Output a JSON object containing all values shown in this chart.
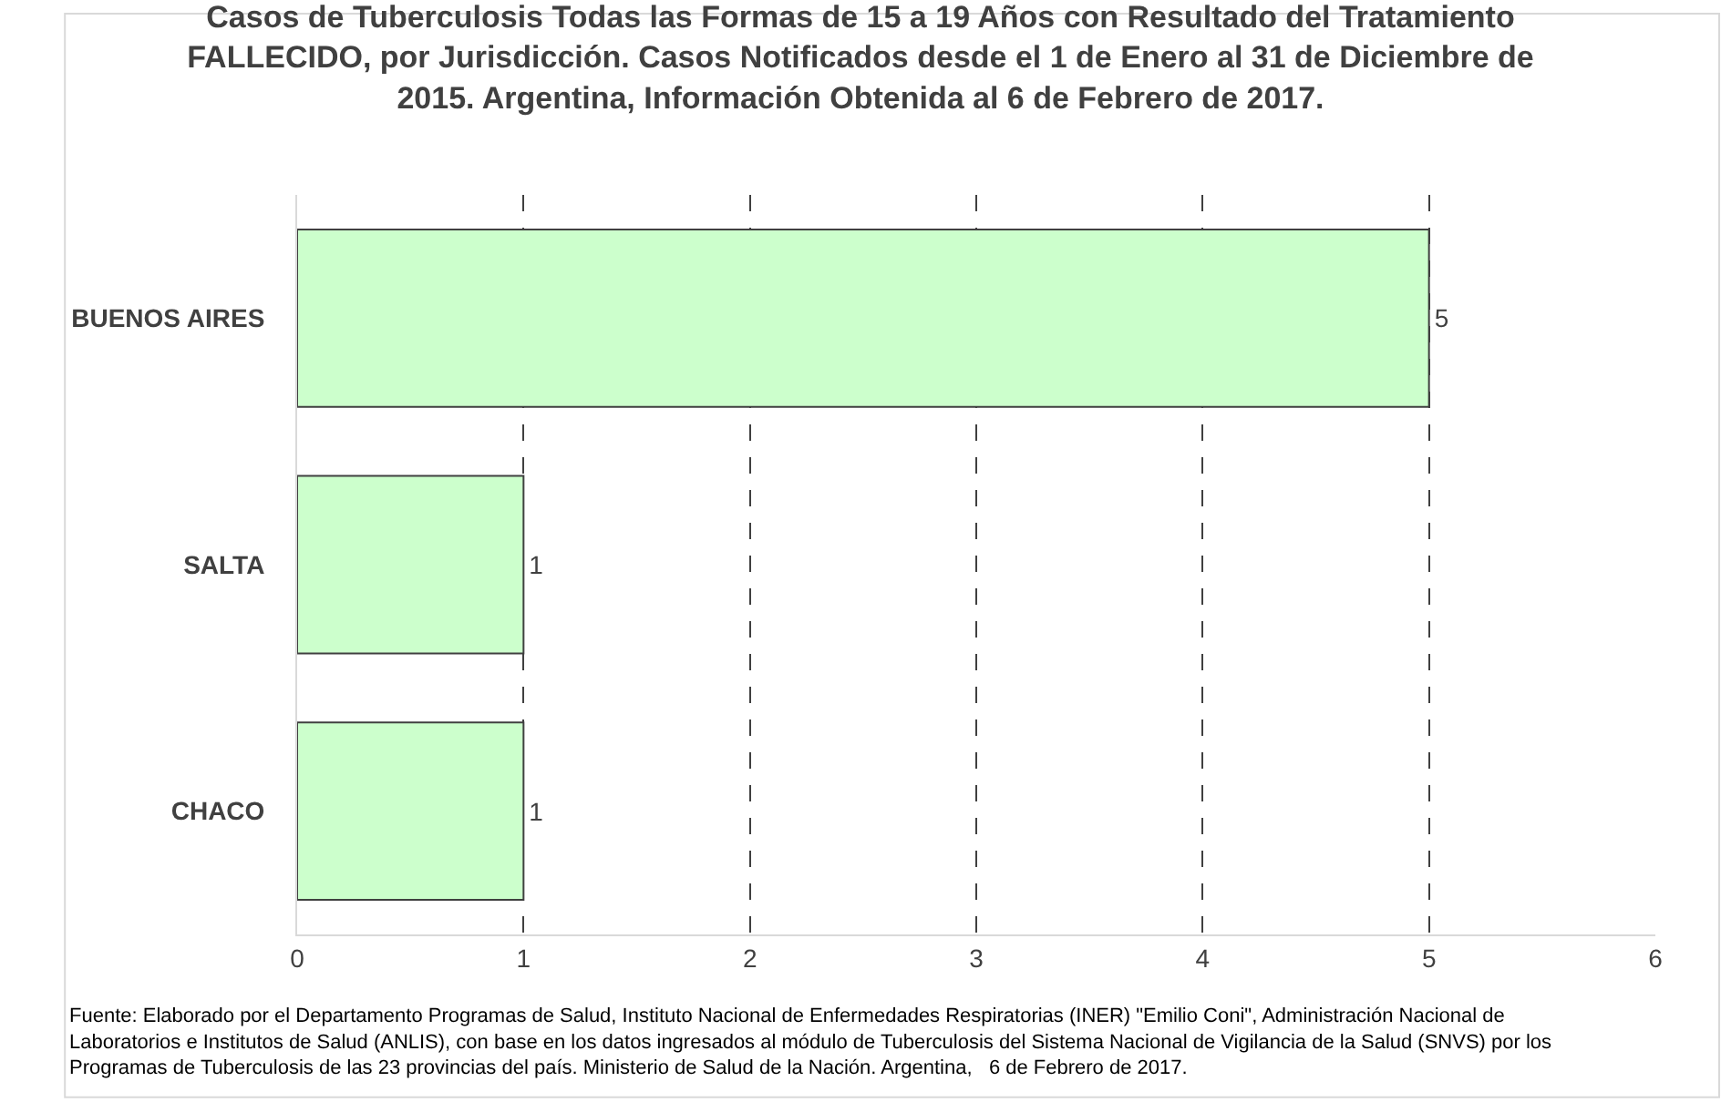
{
  "chart_data": {
    "type": "bar",
    "orientation": "horizontal",
    "title": "Casos de Tuberculosis Todas las Formas de 15 a 19 Años con Resultado del Tratamiento FALLECIDO, por Jurisdicción. Casos Notificados desde el 1 de Enero al 31 de Diciembre de 2015. Argentina, Información Obtenida al 6 de Febrero de 2017.",
    "categories": [
      "BUENOS AIRES",
      "SALTA",
      "CHACO"
    ],
    "values": [
      5,
      1,
      1
    ],
    "color": "#ccffcc",
    "xlim": [
      0,
      6
    ],
    "xticks": [
      0,
      1,
      2,
      3,
      4,
      5,
      6
    ],
    "grid": "x",
    "data_labels": true,
    "annotations": [
      "Fuente: Elaborado por el Departamento Programas de Salud, Instituto Nacional de Enfermedades Respiratorias (INER) \"Emilio Coni\", Administración Nacional de Laboratorios e Institutos de Salud (ANLIS), con base en los datos ingresados al módulo de Tuberculosis del Sistema Nacional de Vigilancia de la Salud (SNVS) por los Programas de Tuberculosis de las 23 provincias del país. Ministerio de Salud de la Nación. Argentina,   6 de Febrero de 2017."
    ]
  }
}
